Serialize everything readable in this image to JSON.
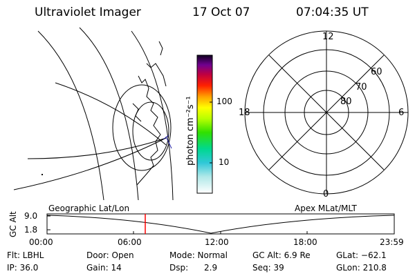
{
  "header": {
    "instrument": "Ultraviolet Imager",
    "date": "17 Oct 07",
    "time": "07:04:35 UT"
  },
  "colorbar": {
    "label": "photon cm⁻²s⁻¹",
    "ticks": [
      "100",
      "10"
    ],
    "scale": "log"
  },
  "polar_plot": {
    "mlt_labels": {
      "top": "12",
      "left": "18",
      "right": "6",
      "bottom": "0"
    },
    "lat_labels": [
      "60",
      "70",
      "80"
    ]
  },
  "timeline": {
    "left_label": "Geographic Lat/Lon",
    "right_label": "Apex MLat/MLT",
    "ylabel": "GC Alt",
    "y_ticks": [
      "9.0",
      "1.8"
    ],
    "x_ticks": [
      "00:00",
      "06:00",
      "12:00",
      "18:00",
      "23:59"
    ],
    "current_marker_time": "07:04:35",
    "current_marker_color": "#ff0000"
  },
  "info": [
    [
      "Flt: LBHL",
      "Door: Open",
      "Mode: Normal",
      "GC Alt: 6.9 Re",
      "GLat: −62.1"
    ],
    [
      "IP: 36.0",
      "Gain: 14",
      "Dsp:      2.9",
      "Seq: 39",
      "GLon: 210.8"
    ]
  ]
}
